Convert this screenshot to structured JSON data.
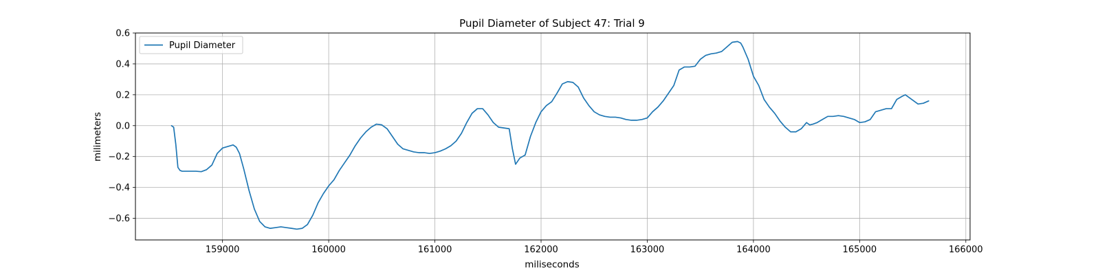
{
  "chart_data": {
    "type": "line",
    "title": "Pupil Diameter of Subject 47: Trial 9",
    "xlabel": "miliseconds",
    "ylabel": "milimeters",
    "xlim": [
      158180,
      166040
    ],
    "ylim": [
      -0.74,
      0.6
    ],
    "xticks": [
      159000,
      160000,
      161000,
      162000,
      163000,
      164000,
      165000,
      166000
    ],
    "yticks": [
      -0.6,
      -0.4,
      -0.2,
      0.0,
      0.2,
      0.4,
      0.6
    ],
    "ytick_labels": [
      "−0.6",
      "−0.4",
      "−0.2",
      "0.0",
      "0.2",
      "0.4",
      "0.6"
    ],
    "grid": true,
    "legend_position": "top-left",
    "colors": {
      "series": "#1f77b4"
    },
    "series": [
      {
        "name": "Pupil Diameter",
        "x": [
          158520,
          158540,
          158560,
          158580,
          158600,
          158620,
          158650,
          158700,
          158750,
          158800,
          158850,
          158900,
          158950,
          159000,
          159050,
          159100,
          159130,
          159160,
          159200,
          159250,
          159300,
          159350,
          159400,
          159450,
          159500,
          159550,
          159600,
          159650,
          159700,
          159750,
          159800,
          159850,
          159900,
          159950,
          160000,
          160050,
          160100,
          160150,
          160200,
          160250,
          160300,
          160350,
          160400,
          160450,
          160500,
          160550,
          160600,
          160650,
          160700,
          160750,
          160800,
          160850,
          160900,
          160950,
          161000,
          161050,
          161100,
          161150,
          161200,
          161250,
          161300,
          161350,
          161400,
          161450,
          161500,
          161550,
          161600,
          161650,
          161700,
          161730,
          161760,
          161780,
          161800,
          161850,
          161900,
          161950,
          162000,
          162050,
          162100,
          162150,
          162200,
          162250,
          162300,
          162350,
          162400,
          162450,
          162500,
          162550,
          162600,
          162650,
          162700,
          162750,
          162800,
          162850,
          162900,
          162950,
          163000,
          163050,
          163100,
          163150,
          163200,
          163250,
          163300,
          163350,
          163400,
          163450,
          163500,
          163550,
          163600,
          163650,
          163700,
          163750,
          163800,
          163850,
          163880,
          163900,
          163950,
          164000,
          164050,
          164100,
          164150,
          164200,
          164250,
          164300,
          164350,
          164400,
          164450,
          164500,
          164530,
          164560,
          164600,
          164650,
          164700,
          164750,
          164800,
          164850,
          164900,
          164950,
          165000,
          165050,
          165100,
          165150,
          165200,
          165250,
          165300,
          165350,
          165400,
          165430,
          165450,
          165500,
          165550,
          165600,
          165650
        ],
        "y": [
          0.0,
          -0.01,
          -0.12,
          -0.27,
          -0.29,
          -0.295,
          -0.295,
          -0.295,
          -0.295,
          -0.298,
          -0.285,
          -0.255,
          -0.18,
          -0.145,
          -0.135,
          -0.125,
          -0.14,
          -0.18,
          -0.28,
          -0.42,
          -0.54,
          -0.62,
          -0.655,
          -0.665,
          -0.66,
          -0.655,
          -0.66,
          -0.665,
          -0.67,
          -0.665,
          -0.64,
          -0.58,
          -0.5,
          -0.44,
          -0.39,
          -0.35,
          -0.29,
          -0.24,
          -0.19,
          -0.13,
          -0.08,
          -0.04,
          -0.01,
          0.01,
          0.005,
          -0.02,
          -0.07,
          -0.12,
          -0.15,
          -0.16,
          -0.17,
          -0.175,
          -0.175,
          -0.18,
          -0.175,
          -0.165,
          -0.15,
          -0.13,
          -0.1,
          -0.05,
          0.02,
          0.08,
          0.11,
          0.11,
          0.07,
          0.02,
          -0.01,
          -0.015,
          -0.02,
          -0.15,
          -0.25,
          -0.23,
          -0.21,
          -0.19,
          -0.07,
          0.02,
          0.09,
          0.13,
          0.155,
          0.21,
          0.27,
          0.285,
          0.28,
          0.25,
          0.18,
          0.13,
          0.09,
          0.07,
          0.06,
          0.055,
          0.055,
          0.05,
          0.04,
          0.035,
          0.035,
          0.04,
          0.05,
          0.09,
          0.12,
          0.16,
          0.21,
          0.26,
          0.36,
          0.38,
          0.38,
          0.385,
          0.43,
          0.455,
          0.465,
          0.47,
          0.48,
          0.51,
          0.54,
          0.545,
          0.535,
          0.51,
          0.43,
          0.32,
          0.26,
          0.17,
          0.12,
          0.08,
          0.03,
          -0.01,
          -0.04,
          -0.04,
          -0.02,
          0.02,
          0.005,
          0.01,
          0.02,
          0.04,
          0.06,
          0.06,
          0.065,
          0.06,
          0.05,
          0.04,
          0.02,
          0.025,
          0.04,
          0.09,
          0.1,
          0.11,
          0.11,
          0.17,
          0.19,
          0.2,
          0.19,
          0.165,
          0.14,
          0.145,
          0.16
        ]
      }
    ]
  }
}
